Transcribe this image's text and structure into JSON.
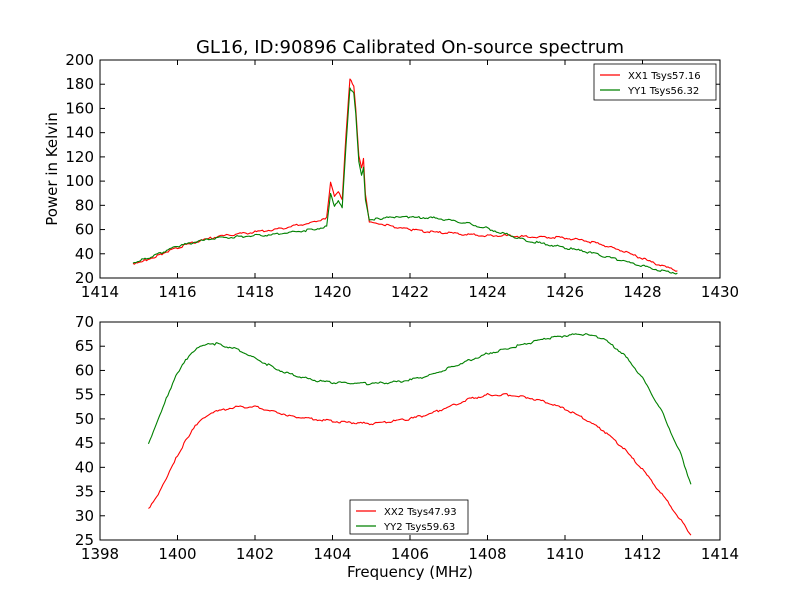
{
  "chart_data": [
    {
      "type": "line",
      "title": "GL16, ID:90896 Calibrated On-source spectrum",
      "xlabel": "",
      "ylabel": "Power in Kelvin",
      "xlim": [
        1414,
        1430
      ],
      "ylim": [
        20,
        200
      ],
      "xticks": [
        1414,
        1416,
        1418,
        1420,
        1422,
        1424,
        1426,
        1428,
        1430
      ],
      "yticks": [
        20,
        40,
        60,
        80,
        100,
        120,
        140,
        160,
        180,
        200
      ],
      "legend_position": "top-right",
      "series": [
        {
          "name": "XX1 Tsys57.16",
          "color": "#ff0000",
          "x": [
            1414.85,
            1415.2,
            1415.6,
            1416.0,
            1416.5,
            1417.0,
            1417.5,
            1418.0,
            1418.5,
            1419.0,
            1419.5,
            1419.85,
            1419.95,
            1420.05,
            1420.15,
            1420.25,
            1420.35,
            1420.45,
            1420.55,
            1420.6,
            1420.68,
            1420.75,
            1420.8,
            1420.85,
            1420.95,
            1421.2,
            1421.6,
            1422.0,
            1422.5,
            1423.0,
            1423.5,
            1424.0,
            1424.5,
            1425.0,
            1425.5,
            1426.0,
            1426.5,
            1427.0,
            1427.5,
            1428.0,
            1428.5,
            1428.9
          ],
          "y": [
            32,
            35,
            40,
            45,
            50,
            54,
            56,
            58,
            60,
            63,
            66,
            70,
            100,
            88,
            92,
            85,
            140,
            184,
            178,
            160,
            120,
            110,
            118,
            90,
            67,
            65,
            62,
            60,
            58,
            57,
            56,
            55,
            55,
            54,
            54,
            53,
            51,
            47,
            42,
            36,
            30,
            26
          ]
        },
        {
          "name": "YY1 Tsys56.32",
          "color": "#008000",
          "x": [
            1414.85,
            1415.2,
            1415.6,
            1416.0,
            1416.5,
            1417.0,
            1417.5,
            1418.0,
            1418.5,
            1419.0,
            1419.5,
            1419.85,
            1419.95,
            1420.05,
            1420.15,
            1420.25,
            1420.35,
            1420.45,
            1420.55,
            1420.6,
            1420.68,
            1420.75,
            1420.8,
            1420.85,
            1420.95,
            1421.2,
            1421.6,
            1422.0,
            1422.5,
            1423.0,
            1423.5,
            1424.0,
            1424.5,
            1425.0,
            1425.5,
            1426.0,
            1426.5,
            1427.0,
            1427.5,
            1428.0,
            1428.5,
            1428.9
          ],
          "y": [
            33,
            36,
            41,
            46,
            50,
            53,
            54,
            55,
            56,
            58,
            60,
            63,
            90,
            80,
            84,
            78,
            130,
            176,
            172,
            155,
            115,
            105,
            112,
            85,
            68,
            69,
            70,
            70,
            70,
            68,
            65,
            61,
            56,
            51,
            48,
            45,
            42,
            38,
            34,
            30,
            26,
            24
          ]
        }
      ]
    },
    {
      "type": "line",
      "title": "",
      "xlabel": "Frequency (MHz)",
      "ylabel": "",
      "xlim": [
        1398,
        1414
      ],
      "ylim": [
        25,
        70
      ],
      "xticks": [
        1398,
        1400,
        1402,
        1404,
        1406,
        1408,
        1410,
        1412,
        1414
      ],
      "yticks": [
        25,
        30,
        35,
        40,
        45,
        50,
        55,
        60,
        65,
        70
      ],
      "legend_position": "bottom-center",
      "series": [
        {
          "name": "XX2 Tsys47.93",
          "color": "#ff0000",
          "x": [
            1399.25,
            1399.5,
            1399.75,
            1400.0,
            1400.25,
            1400.5,
            1400.75,
            1401.0,
            1401.5,
            1402.0,
            1402.5,
            1403.0,
            1403.5,
            1404.0,
            1404.5,
            1405.0,
            1405.5,
            1406.0,
            1406.5,
            1407.0,
            1407.5,
            1408.0,
            1408.5,
            1409.0,
            1409.5,
            1410.0,
            1410.5,
            1411.0,
            1411.5,
            1412.0,
            1412.5,
            1413.0,
            1413.25
          ],
          "y": [
            31.5,
            34.5,
            38.5,
            42.5,
            46.0,
            49.0,
            50.5,
            51.5,
            52.5,
            52.5,
            51.5,
            50.5,
            50.0,
            49.5,
            49.2,
            49.0,
            49.5,
            50.0,
            51.0,
            52.5,
            54.0,
            55.0,
            55.0,
            54.5,
            53.5,
            52.0,
            50.0,
            47.5,
            44.0,
            39.5,
            34.5,
            29.0,
            26.0
          ]
        },
        {
          "name": "YY2 Tsys59.63",
          "color": "#008000",
          "x": [
            1399.25,
            1399.5,
            1399.75,
            1400.0,
            1400.25,
            1400.5,
            1400.75,
            1401.0,
            1401.5,
            1402.0,
            1402.5,
            1403.0,
            1403.5,
            1404.0,
            1404.5,
            1405.0,
            1405.5,
            1406.0,
            1406.5,
            1407.0,
            1407.5,
            1408.0,
            1408.5,
            1409.0,
            1409.5,
            1410.0,
            1410.5,
            1411.0,
            1411.5,
            1412.0,
            1412.5,
            1413.0,
            1413.25
          ],
          "y": [
            45.0,
            50.0,
            55.0,
            59.5,
            62.5,
            64.5,
            65.3,
            65.5,
            64.5,
            62.5,
            60.5,
            59.0,
            58.0,
            57.5,
            57.3,
            57.3,
            57.5,
            58.0,
            59.0,
            60.5,
            62.0,
            63.5,
            64.5,
            65.5,
            66.5,
            67.2,
            67.5,
            66.5,
            63.5,
            58.5,
            51.5,
            42.5,
            36.5
          ]
        }
      ]
    }
  ]
}
